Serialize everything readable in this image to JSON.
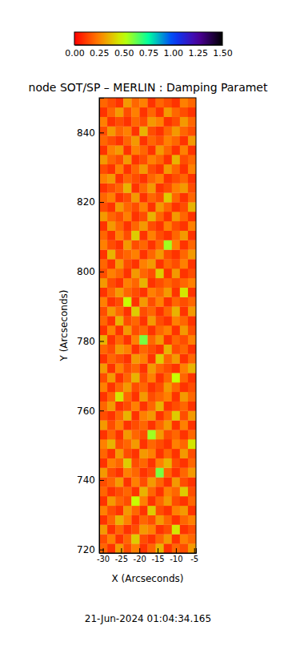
{
  "chart_data": {
    "type": "heatmap",
    "title": "node SOT/SP – MERLIN : Damping Paramet",
    "x_label": "X (Arcseconds)",
    "y_label": "Y (Arcseconds)",
    "annotations": [
      "21-Jun-2024 01:04:34.165"
    ],
    "xlim": [
      -31,
      -4.5
    ],
    "xticks": [
      -30,
      -25,
      -20,
      -15,
      -10,
      -5
    ],
    "ylim": [
      719,
      850
    ],
    "yticks": [
      720,
      740,
      760,
      780,
      800,
      820,
      840
    ],
    "colorbar": {
      "range": [
        0,
        1.5
      ],
      "ticks": [
        {
          "value": 0,
          "label": "0.00"
        },
        {
          "value": 0.25,
          "label": "0.25"
        },
        {
          "value": 0.5,
          "label": "0.50"
        },
        {
          "value": 0.75,
          "label": "0.75"
        },
        {
          "value": 1,
          "label": "1.00"
        },
        {
          "value": 1.25,
          "label": "1.25"
        },
        {
          "value": 1.5,
          "label": "1.50"
        }
      ]
    },
    "z": [
      [
        0.2,
        0.1,
        0.3,
        0.15,
        0.25,
        0.1,
        0.2,
        0.35,
        0.1,
        0.2,
        0.15,
        0.3
      ],
      [
        0.15,
        0.25,
        0.1,
        0.2,
        0.4,
        0.15,
        0.1,
        0.2,
        0.3,
        0.1,
        0.25,
        0.2
      ],
      [
        0.3,
        0.1,
        0.2,
        0.1,
        0.15,
        0.3,
        0.25,
        0.1,
        0.15,
        0.45,
        0.1,
        0.15
      ],
      [
        0.1,
        0.2,
        0.35,
        0.25,
        0.1,
        0.2,
        0.15,
        0.3,
        0.2,
        0.1,
        0.2,
        0.25
      ],
      [
        0.25,
        0.15,
        0.1,
        0.3,
        0.2,
        0.1,
        0.4,
        0.15,
        0.1,
        0.25,
        0.3,
        0.1
      ],
      [
        0.1,
        0.3,
        0.2,
        0.15,
        0.5,
        0.25,
        0.1,
        0.2,
        0.3,
        0.15,
        0.1,
        0.2
      ],
      [
        0.2,
        0.1,
        0.15,
        0.2,
        0.1,
        0.35,
        0.2,
        0.1,
        0.25,
        0.2,
        0.4,
        0.15
      ],
      [
        0.15,
        0.2,
        0.3,
        0.1,
        0.25,
        0.15,
        0.3,
        0.2,
        0.1,
        0.3,
        0.15,
        0.1
      ],
      [
        0.3,
        0.15,
        0.1,
        0.25,
        0.2,
        0.1,
        0.15,
        0.6,
        0.2,
        0.1,
        0.2,
        0.3
      ],
      [
        0.1,
        0.25,
        0.2,
        0.4,
        0.15,
        0.2,
        0.1,
        0.25,
        0.35,
        0.15,
        0.1,
        0.2
      ],
      [
        0.2,
        0.1,
        0.3,
        0.15,
        0.1,
        0.3,
        0.25,
        0.1,
        0.2,
        0.1,
        0.3,
        0.15
      ],
      [
        0.25,
        0.35,
        0.15,
        0.2,
        0.3,
        0.1,
        0.2,
        0.15,
        0.1,
        0.25,
        0.2,
        0.45
      ],
      [
        0.1,
        0.2,
        0.1,
        0.3,
        0.2,
        0.15,
        0.55,
        0.3,
        0.15,
        0.2,
        0.1,
        0.2
      ],
      [
        0.3,
        0.15,
        0.25,
        0.1,
        0.15,
        0.2,
        0.1,
        0.2,
        0.3,
        0.1,
        0.25,
        0.1
      ],
      [
        0.15,
        0.1,
        0.2,
        0.35,
        0.1,
        0.25,
        0.3,
        0.1,
        0.2,
        0.4,
        0.15,
        0.3
      ],
      [
        0.2,
        0.3,
        0.1,
        0.15,
        0.25,
        0.1,
        0.2,
        0.35,
        0.1,
        0.15,
        0.2,
        0.1
      ],
      [
        0.1,
        0.2,
        0.45,
        0.2,
        0.1,
        0.3,
        0.15,
        0.2,
        0.25,
        0.1,
        0.3,
        0.2
      ],
      [
        0.25,
        0.1,
        0.2,
        0.3,
        0.15,
        0.2,
        0.1,
        0.15,
        0.3,
        0.2,
        0.1,
        0.15
      ],
      [
        0.15,
        0.3,
        0.1,
        0.2,
        0.35,
        0.15,
        0.25,
        0.1,
        0.2,
        0.5,
        0.2,
        0.1
      ],
      [
        0.3,
        0.1,
        0.25,
        0.15,
        0.2,
        0.1,
        0.3,
        0.2,
        0.15,
        0.1,
        0.25,
        0.35
      ],
      [
        0.1,
        0.2,
        0.15,
        0.1,
        0.3,
        0.25,
        0.1,
        0.4,
        0.2,
        0.3,
        0.1,
        0.2
      ],
      [
        0.2,
        0.15,
        0.3,
        0.25,
        0.1,
        0.2,
        0.15,
        0.1,
        0.35,
        0.15,
        0.2,
        0.1
      ],
      [
        0.35,
        0.1,
        0.2,
        0.1,
        0.25,
        0.6,
        0.2,
        0.3,
        0.1,
        0.2,
        0.15,
        0.25
      ],
      [
        0.1,
        0.25,
        0.1,
        0.3,
        0.15,
        0.2,
        0.1,
        0.2,
        0.25,
        0.1,
        0.3,
        0.15
      ],
      [
        0.2,
        0.1,
        0.35,
        0.15,
        0.2,
        0.1,
        0.3,
        0.15,
        0.1,
        0.25,
        0.2,
        0.1
      ],
      [
        0.15,
        0.3,
        0.2,
        0.1,
        0.4,
        0.15,
        0.2,
        0.1,
        0.2,
        0.35,
        0.1,
        0.3
      ],
      [
        0.25,
        0.1,
        0.15,
        0.5,
        0.1,
        0.3,
        0.15,
        0.25,
        0.1,
        0.2,
        0.15,
        0.2
      ],
      [
        0.1,
        0.2,
        0.3,
        0.2,
        0.15,
        0.1,
        0.25,
        0.2,
        0.3,
        0.1,
        0.45,
        0.1
      ],
      [
        0.3,
        0.15,
        0.1,
        0.25,
        0.2,
        0.35,
        0.1,
        0.15,
        0.2,
        0.15,
        0.2,
        0.25
      ],
      [
        0.15,
        0.25,
        0.2,
        0.1,
        0.3,
        0.2,
        0.15,
        0.4,
        0.1,
        0.3,
        0.1,
        0.15
      ],
      [
        0.2,
        0.1,
        0.3,
        0.15,
        0.1,
        0.25,
        0.3,
        0.1,
        0.2,
        0.15,
        0.25,
        0.1
      ],
      [
        0.1,
        0.35,
        0.15,
        0.2,
        0.25,
        0.1,
        0.2,
        0.3,
        0.15,
        0.1,
        0.2,
        0.3
      ],
      [
        0.25,
        0.15,
        0.1,
        0.3,
        0.15,
        0.2,
        0.1,
        0.2,
        0.55,
        0.25,
        0.1,
        0.2
      ],
      [
        0.2,
        0.1,
        0.25,
        0.15,
        0.4,
        0.1,
        0.25,
        0.15,
        0.1,
        0.2,
        0.3,
        0.1
      ],
      [
        0.1,
        0.3,
        0.2,
        0.1,
        0.2,
        0.3,
        0.15,
        0.1,
        0.25,
        0.15,
        0.1,
        0.25
      ],
      [
        0.3,
        0.2,
        0.15,
        0.25,
        0.1,
        0.15,
        0.35,
        0.2,
        0.1,
        0.3,
        0.2,
        0.1
      ],
      [
        0.15,
        0.1,
        0.3,
        0.2,
        0.15,
        0.25,
        0.1,
        0.3,
        0.2,
        0.1,
        0.15,
        0.35
      ],
      [
        0.2,
        0.25,
        0.1,
        0.15,
        0.3,
        0.1,
        0.2,
        0.15,
        0.4,
        0.2,
        0.1,
        0.2
      ],
      [
        0.1,
        0.15,
        0.2,
        0.35,
        0.1,
        0.2,
        0.3,
        0.1,
        0.15,
        0.25,
        0.3,
        0.15
      ],
      [
        0.25,
        0.3,
        0.1,
        0.2,
        0.15,
        0.1,
        0.2,
        0.25,
        0.1,
        0.15,
        0.2,
        0.1
      ],
      [
        0.15,
        0.1,
        0.25,
        0.1,
        0.2,
        0.3,
        0.15,
        0.1,
        0.3,
        0.2,
        0.1,
        0.25
      ],
      [
        0.3,
        0.2,
        0.15,
        0.3,
        0.1,
        0.15,
        0.25,
        0.2,
        0.1,
        0.35,
        0.15,
        0.2
      ],
      [
        0.1,
        0.25,
        0.3,
        0.1,
        0.25,
        0.2,
        0.1,
        0.3,
        0.2,
        0.1,
        0.25,
        0.1
      ],
      [
        0.2,
        0.15,
        0.1,
        0.2,
        0.3,
        0.1,
        0.2,
        0.15,
        0.25,
        0.2,
        0.1,
        0.3
      ],
      [
        0.15,
        0.3,
        0.2,
        0.25,
        0.1,
        0.35,
        0.15,
        0.1,
        0.2,
        0.3,
        0.2,
        0.15
      ],
      [
        0.25,
        0.1,
        0.15,
        0.1,
        0.2,
        0.15,
        0.3,
        0.25,
        0.1,
        0.15,
        0.3,
        0.2
      ],
      [
        0.1,
        0.2,
        0.3,
        0.15,
        0.25,
        0.1,
        0.2,
        0.1,
        0.3,
        0.2,
        0.15,
        0.1
      ],
      [
        0.2,
        0.15,
        0.1,
        0.3,
        0.2,
        0.25,
        0.1,
        0.2,
        0.15,
        0.1,
        0.25,
        0.2
      ]
    ]
  }
}
